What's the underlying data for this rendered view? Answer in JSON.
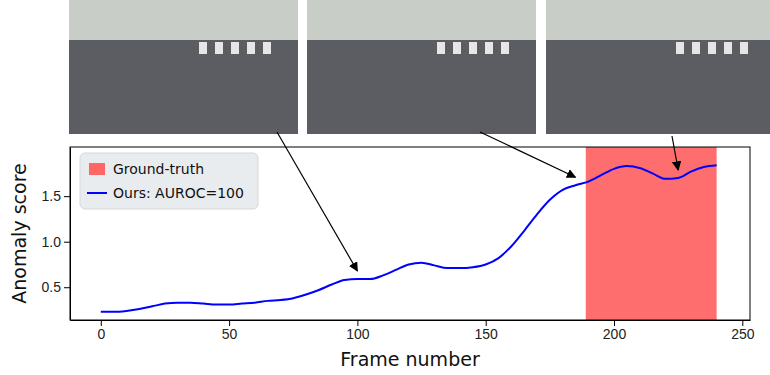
{
  "chart_data": {
    "type": "line",
    "x_label": "Frame number",
    "y_label": "Anomaly score",
    "x": [
      0,
      5,
      10,
      15,
      20,
      25,
      30,
      35,
      40,
      45,
      50,
      55,
      60,
      65,
      70,
      75,
      80,
      85,
      90,
      95,
      100,
      105,
      110,
      115,
      120,
      125,
      130,
      135,
      140,
      145,
      150,
      155,
      160,
      165,
      170,
      175,
      180,
      185,
      190,
      195,
      200,
      205,
      210,
      215,
      220,
      225,
      230,
      235,
      240
    ],
    "series": [
      {
        "name": "Ours: AUROC=100",
        "color": "#0000ff",
        "values": [
          0.23,
          0.23,
          0.24,
          0.26,
          0.29,
          0.32,
          0.33,
          0.33,
          0.32,
          0.31,
          0.31,
          0.32,
          0.33,
          0.35,
          0.36,
          0.38,
          0.42,
          0.47,
          0.53,
          0.58,
          0.59,
          0.59,
          0.63,
          0.69,
          0.75,
          0.77,
          0.74,
          0.71,
          0.71,
          0.72,
          0.75,
          0.82,
          0.95,
          1.12,
          1.3,
          1.46,
          1.57,
          1.62,
          1.66,
          1.73,
          1.8,
          1.83,
          1.81,
          1.75,
          1.69,
          1.7,
          1.77,
          1.82,
          1.84
        ]
      }
    ],
    "shaded_regions": [
      {
        "name": "Ground-truth",
        "start": 189,
        "end": 240,
        "color": "#ff6666"
      }
    ],
    "arrow_frames": [
      100,
      185,
      225
    ],
    "xlim": [
      -12,
      253
    ],
    "xticks": [
      0,
      50,
      100,
      150,
      200,
      250
    ],
    "ylim": [
      0.14,
      2.04
    ],
    "yticks": [
      {
        "value": 0.5,
        "label": "0.5"
      },
      {
        "value": 1.0,
        "label": "1.0"
      },
      {
        "value": 1.5,
        "label": "1.5"
      }
    ],
    "legend": "upper left",
    "grid": false
  }
}
